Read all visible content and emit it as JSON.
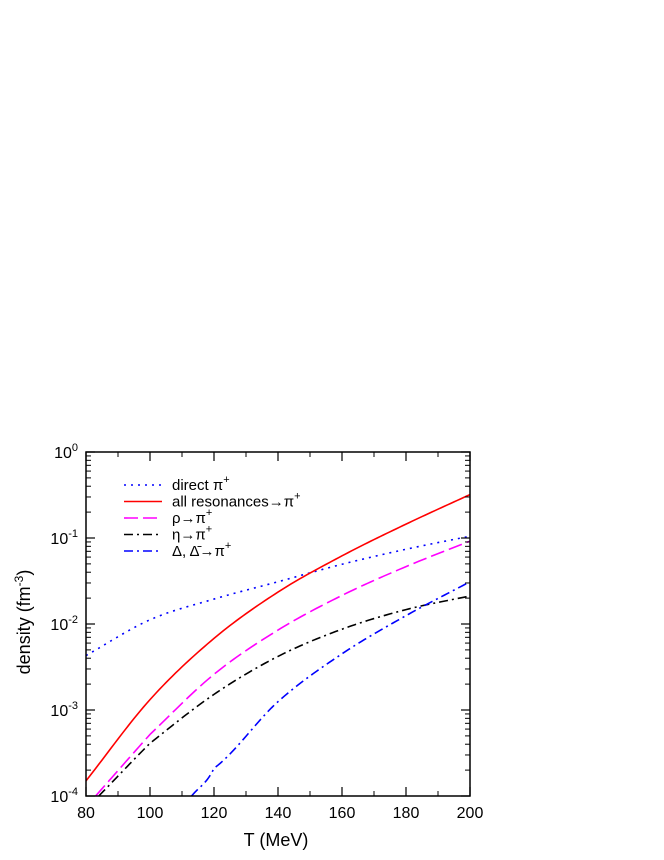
{
  "chart_data": {
    "type": "line",
    "xlabel": "T (MeV)",
    "ylabel_main": "density (fm",
    "ylabel_sup": "-3",
    "ylabel_end": ")",
    "xlim": [
      80,
      200
    ],
    "ylim": [
      0.0001,
      1
    ],
    "yscale": "log",
    "grid": false,
    "legend_position": "top-left",
    "x_ticks": [
      80,
      100,
      120,
      140,
      160,
      180,
      200
    ],
    "x_tick_labels": [
      "80",
      "100",
      "120",
      "140",
      "160",
      "180",
      "200"
    ],
    "y_ticks": [
      0.0001,
      0.001,
      0.01,
      0.1,
      1
    ],
    "y_tick_labels": [
      {
        "base": "10",
        "exp": "-4"
      },
      {
        "base": "10",
        "exp": "-3"
      },
      {
        "base": "10",
        "exp": "-2"
      },
      {
        "base": "10",
        "exp": "-1"
      },
      {
        "base": "10",
        "exp": "0"
      }
    ],
    "series": [
      {
        "name": "direct π+",
        "label_main": "direct π",
        "label_sup": "+",
        "color": "#0000ff",
        "dash": "2,5",
        "x": [
          80,
          100,
          120,
          140,
          160,
          180,
          200
        ],
        "y": [
          0.0043,
          0.0112,
          0.0195,
          0.031,
          0.0495,
          0.074,
          0.105
        ]
      },
      {
        "name": "all resonances→π+",
        "label_main": "all resonances→π",
        "label_sup": "+",
        "color": "#ff0000",
        "dash": "",
        "x": [
          80,
          100,
          120,
          140,
          160,
          180,
          200
        ],
        "y": [
          0.00015,
          0.00132,
          0.0068,
          0.0235,
          0.062,
          0.145,
          0.32
        ]
      },
      {
        "name": "ρ→π+",
        "label_main": "ρ→π",
        "label_sup": "+",
        "color": "#ff00ff",
        "dash": "14,5",
        "x": [
          83,
          100,
          120,
          140,
          160,
          180,
          200
        ],
        "y": [
          0.0001,
          0.00052,
          0.0026,
          0.0085,
          0.0215,
          0.0465,
          0.092
        ]
      },
      {
        "name": "η→π+",
        "label_main": "η→π",
        "label_sup": "+",
        "color": "#000000",
        "dash": "9,4,2,4",
        "x": [
          84,
          100,
          120,
          140,
          160,
          180,
          200
        ],
        "y": [
          0.0001,
          0.00041,
          0.00152,
          0.0042,
          0.0087,
          0.0147,
          0.0212
        ]
      },
      {
        "name": "Δ, Δ̄→π+",
        "label_main": "Δ, Δ̄→π",
        "label_sup": "+",
        "color": "#0000ff",
        "dash": "9,4,2,4",
        "x": [
          113,
          120,
          140,
          160,
          180,
          200
        ],
        "y": [
          0.0001,
          0.00021,
          0.00125,
          0.0045,
          0.0125,
          0.031
        ]
      }
    ]
  }
}
